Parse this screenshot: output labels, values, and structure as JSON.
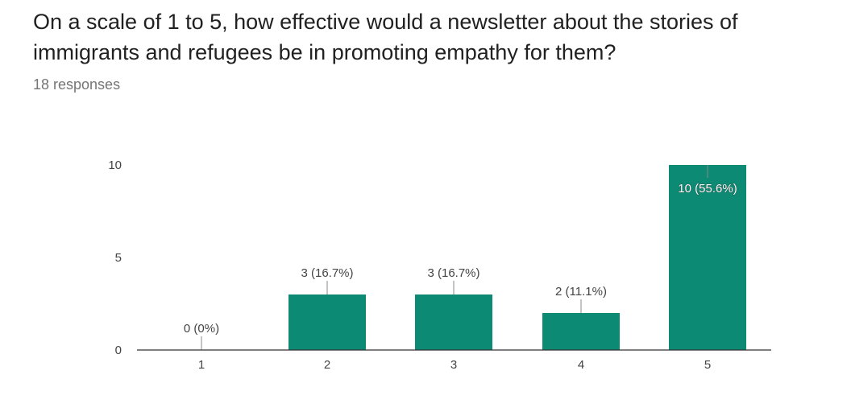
{
  "header": {
    "question": "On a scale of 1 to 5, how effective would a newsletter about the stories of immigrants and refugees be in promoting empathy for them?",
    "responses": "18 responses"
  },
  "colors": {
    "bar": "#0d8a73",
    "axis": "#333333",
    "text": "#444444"
  },
  "chart_data": {
    "type": "bar",
    "categories": [
      "1",
      "2",
      "3",
      "4",
      "5"
    ],
    "values": [
      0,
      3,
      3,
      2,
      10
    ],
    "data_labels": [
      "0 (0%)",
      "3 (16.7%)",
      "3 (16.7%)",
      "2 (11.1%)",
      "10 (55.6%)"
    ],
    "yticks": [
      "0",
      "5",
      "10"
    ],
    "ylim": [
      0,
      10
    ],
    "grid": false,
    "legend": "none"
  }
}
